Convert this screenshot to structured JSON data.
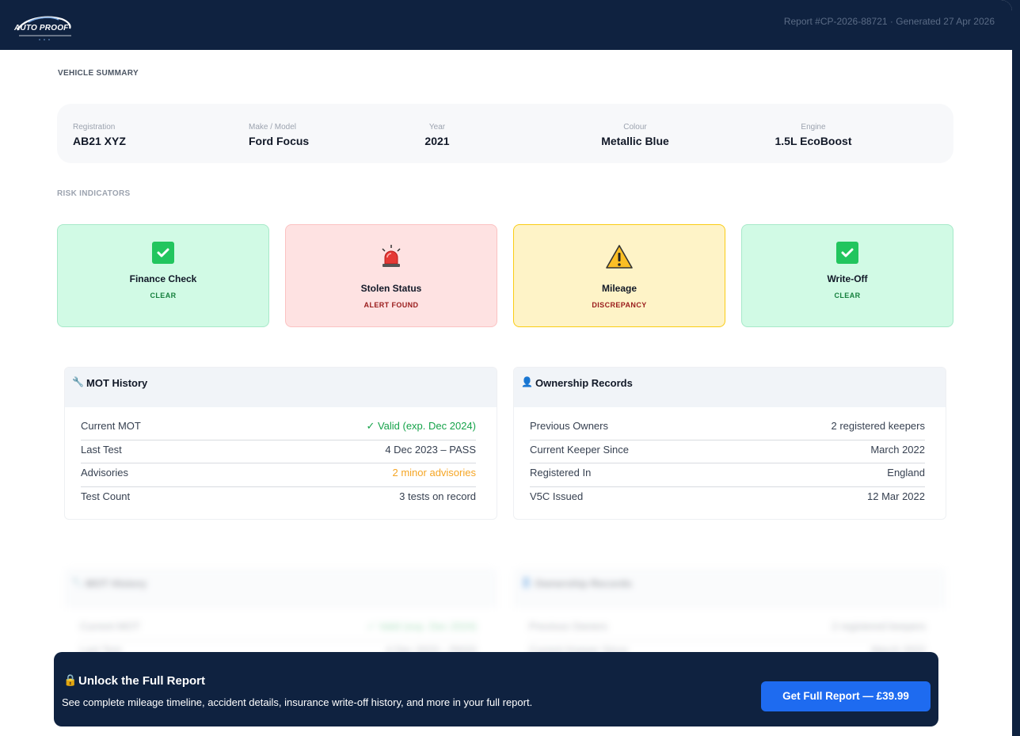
{
  "header": {
    "logo_text": "AUTO PROOF",
    "report_meta": "Report #CP-2026-88721 · Generated 27 Apr 2026"
  },
  "vehicle_summary": {
    "label": "VEHICLE SUMMARY",
    "items": [
      {
        "key": "Registration",
        "value": "AB21 XYZ"
      },
      {
        "key": "Make / Model",
        "value": "Ford Focus"
      },
      {
        "key": "Year",
        "value": "2021"
      },
      {
        "key": "Colour",
        "value": "Metallic Blue"
      },
      {
        "key": "Engine",
        "value": "1.5L EcoBoost"
      }
    ]
  },
  "risk_indicators": {
    "label": "RISK INDICATORS",
    "items": [
      {
        "title": "Finance Check",
        "status": "CLEAR",
        "status_color": "#15803d",
        "icon": "check-icon"
      },
      {
        "title": "Stolen Status",
        "status": "ALERT FOUND",
        "status_color": "#991b1b",
        "icon": "siren-icon"
      },
      {
        "title": "Mileage",
        "status": "DISCREPANCY",
        "status_color": "#991b1b",
        "icon": "warning-icon"
      },
      {
        "title": "Write-Off",
        "status": "CLEAR",
        "status_color": "#15803d",
        "icon": "check-icon"
      }
    ]
  },
  "mot_history": {
    "title": "MOT History",
    "icon": "wrench-icon",
    "rows": [
      {
        "key": "Current MOT",
        "value": "✓ Valid (exp. Dec 2024)"
      },
      {
        "key": "Last Test",
        "value": "4 Dec 2023 – PASS"
      },
      {
        "key": "Advisories",
        "value": "2 minor advisories"
      },
      {
        "key": "Test Count",
        "value": "3 tests on record"
      }
    ]
  },
  "ownership_records": {
    "title": "Ownership Records",
    "icon": "person-icon",
    "rows": [
      {
        "key": "Previous Owners",
        "value": "2 registered keepers"
      },
      {
        "key": "Current Keeper Since",
        "value": "March 2022"
      },
      {
        "key": "Registered In",
        "value": "England"
      },
      {
        "key": "V5C Issued",
        "value": "12 Mar 2022"
      }
    ]
  },
  "cta": {
    "title": "Unlock the Full Report",
    "icon": "lock-icon",
    "description": "See complete mileage timeline, accident details, insurance write-off history, and more in your full report.",
    "button_label": "Get Full Report — £39.99"
  },
  "colors": {
    "navy": "#0f2240",
    "accent_blue": "#1e6bf0",
    "ok_green": "#16a34a",
    "warn_orange": "#f5a524"
  }
}
